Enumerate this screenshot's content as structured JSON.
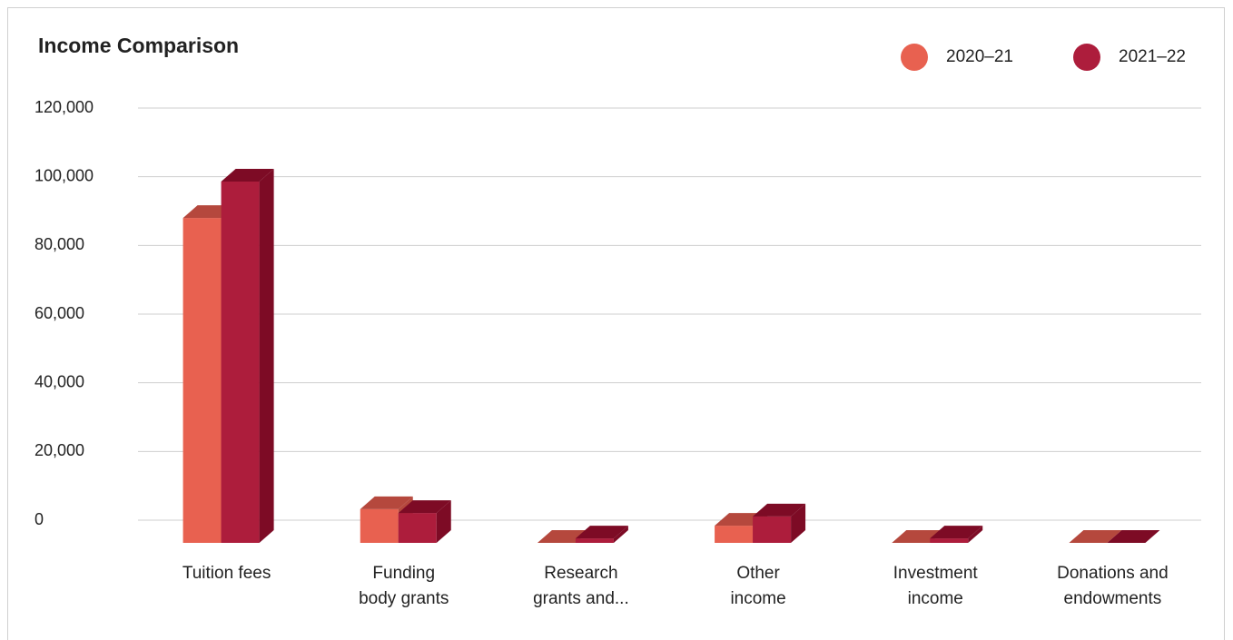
{
  "chart_data": {
    "type": "bar3d",
    "title": "Income Comparison",
    "categories": [
      [
        "Tuition fees"
      ],
      [
        "Funding",
        "body grants"
      ],
      [
        "Research",
        "grants and..."
      ],
      [
        "Other",
        "income"
      ],
      [
        "Investment",
        "income"
      ],
      [
        "Donations and",
        "endowments"
      ]
    ],
    "series": [
      {
        "name": "2020–21",
        "color": "#e86150",
        "shade": "#b5483d",
        "values": [
          94600,
          9800,
          0,
          5000,
          0,
          0
        ]
      },
      {
        "name": "2021–22",
        "color": "#ad1d3c",
        "shade": "#7d0b25",
        "values": [
          105200,
          8700,
          1300,
          7700,
          1300,
          0
        ]
      }
    ],
    "ylim": [
      0,
      120000
    ],
    "yticks": [
      0,
      {
        "value": 20000,
        "label": "20,000"
      },
      {
        "value": 40000,
        "label": "40,000"
      },
      {
        "value": 60000,
        "label": "60,000"
      },
      {
        "value": 80000,
        "label": "80,000"
      },
      {
        "value": 100000,
        "label": "100,000"
      },
      {
        "value": 120000,
        "label": "120,000"
      }
    ],
    "grid": true,
    "legend": "top-right"
  }
}
